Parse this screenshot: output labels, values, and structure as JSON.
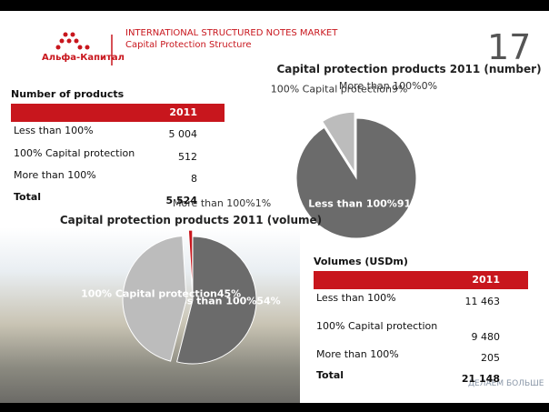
{
  "header": {
    "logo": "Альфа-Капитал",
    "title": "INTERNATIONAL STRUCTURED NOTES MARKET",
    "subtitle": "Capital Protection Structure",
    "page_number": "17"
  },
  "tables": [
    {
      "title": "Number of products",
      "columns": [
        "2011"
      ],
      "rows": [
        [
          "Less than 100%",
          "5 004"
        ],
        [
          "100% Capital protection",
          "512"
        ],
        [
          "More than 100%",
          "8"
        ],
        [
          "Total",
          "5 524"
        ]
      ]
    },
    {
      "title": "Volumes (USDm)",
      "columns": [
        "2011"
      ],
      "rows": [
        [
          "Less than 100%",
          "11 463"
        ],
        [
          "100% Capital protection",
          "9 480"
        ],
        [
          "More than 100%",
          "205"
        ],
        [
          "Total",
          "21 148"
        ]
      ]
    }
  ],
  "chart_data": [
    {
      "type": "pie",
      "title": "Capital protection products 2011 (number)",
      "categories": [
        "Less than 100%",
        "100% Capital protection",
        "More than 100%"
      ],
      "values": [
        91,
        9,
        0
      ],
      "value_labels": [
        "91%",
        "9%",
        "0%"
      ],
      "colors": [
        "#6b6b6b",
        "#bcbcbc",
        "#c8161d"
      ]
    },
    {
      "type": "pie",
      "title": "Capital protection products 2011 (volume)",
      "categories": [
        "Less than 100%",
        "100% Capital protection",
        "More than 100%"
      ],
      "values": [
        54,
        45,
        1
      ],
      "value_labels": [
        "54%",
        "45%",
        "1%"
      ],
      "colors": [
        "#6b6b6b",
        "#bcbcbc",
        "#c8161d"
      ]
    }
  ],
  "footer": "ДЕЛАЕМ БОЛЬШЕ"
}
